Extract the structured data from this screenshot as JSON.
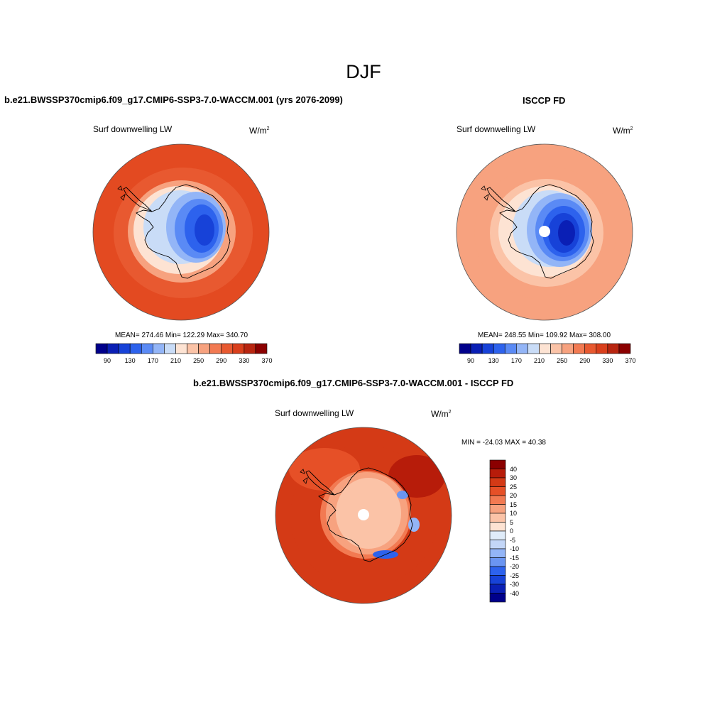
{
  "figure": {
    "title": "DJF"
  },
  "panels": [
    {
      "id": "model",
      "title": "b.e21.BWSSP370cmip6.f09_g17.CMIP6-SSP3-7.0-WACCM.001 (yrs 2076-2099)",
      "variable": "Surf downwelling LW",
      "units_base": "W/m",
      "units_exp": "2",
      "stats": "MEAN= 274.46  Min= 122.29  Max= 340.70",
      "ocean_color": "#e34a21",
      "colorbar_ticks": [
        "90",
        "130",
        "170",
        "210",
        "250",
        "290",
        "330",
        "370"
      ]
    },
    {
      "id": "obs",
      "title": "ISCCP FD",
      "variable": "Surf downwelling LW",
      "units_base": "W/m",
      "units_exp": "2",
      "stats": "MEAN= 248.55  Min= 109.92  Max= 308.00",
      "ocean_color": "#f7a27f",
      "colorbar_ticks": [
        "90",
        "130",
        "170",
        "210",
        "250",
        "290",
        "330",
        "370"
      ]
    },
    {
      "id": "diff",
      "title": "b.e21.BWSSP370cmip6.f09_g17.CMIP6-SSP3-7.0-WACCM.001 - ISCCP FD",
      "variable": "Surf downwelling LW",
      "units_base": "W/m",
      "units_exp": "2",
      "stats": "MIN = -24.03 MAX =  40.38",
      "ocean_color": "#d43a16",
      "colorbar_ticks": [
        "40",
        "30",
        "25",
        "20",
        "15",
        "10",
        "5",
        "0",
        "-5",
        "-10",
        "-15",
        "-20",
        "-25",
        "-30",
        "-40"
      ]
    }
  ],
  "palettes": {
    "absolute": [
      "#00008b",
      "#0a1fb5",
      "#1742d8",
      "#2d62ed",
      "#5a8af5",
      "#93b5f7",
      "#c9dcf7",
      "#fde3d3",
      "#fbc3a7",
      "#f7a27f",
      "#f27a52",
      "#e85930",
      "#d93f1c",
      "#b82510",
      "#8b0000"
    ],
    "difference": [
      "#8b0000",
      "#b71c0a",
      "#d43a16",
      "#e65027",
      "#f27a52",
      "#f7a27f",
      "#fbc3a7",
      "#fde3d3",
      "#e0ecf9",
      "#c3d6f7",
      "#93b5f7",
      "#6a95f2",
      "#2d62ed",
      "#1742d8",
      "#0a1fb5",
      "#00008b"
    ]
  },
  "chart_data": [
    {
      "type": "heatmap",
      "title": "b.e21.BWSSP370cmip6.f09_g17.CMIP6-SSP3-7.0-WACCM.001 (yrs 2076-2099)",
      "variable": "Surf downwelling LW",
      "units": "W/m2",
      "projection": "south polar stereographic",
      "mean": 274.46,
      "min": 122.29,
      "max": 340.7,
      "contour_levels": [
        90,
        130,
        170,
        210,
        250,
        290,
        330,
        370
      ]
    },
    {
      "type": "heatmap",
      "title": "ISCCP FD",
      "variable": "Surf downwelling LW",
      "units": "W/m2",
      "projection": "south polar stereographic",
      "mean": 248.55,
      "min": 109.92,
      "max": 308.0,
      "contour_levels": [
        90,
        130,
        170,
        210,
        250,
        290,
        330,
        370
      ]
    },
    {
      "type": "heatmap",
      "title": "b.e21.BWSSP370cmip6.f09_g17.CMIP6-SSP3-7.0-WACCM.001 - ISCCP FD",
      "variable": "Surf downwelling LW",
      "units": "W/m2",
      "projection": "south polar stereographic",
      "min": -24.03,
      "max": 40.38,
      "contour_levels": [
        -40,
        -30,
        -25,
        -20,
        -15,
        -10,
        -5,
        0,
        5,
        10,
        15,
        20,
        25,
        30,
        40
      ]
    }
  ]
}
